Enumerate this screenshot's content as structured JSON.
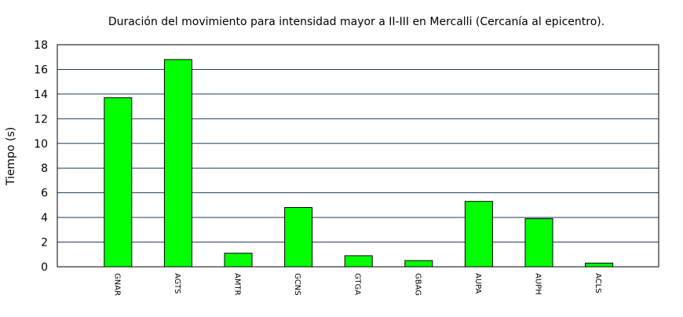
{
  "chart_data": {
    "type": "bar",
    "title": "Duración del movimiento para intensidad mayor a II-III en Mercalli (Cercanía al epicentro).",
    "xlabel": "",
    "ylabel": "Tiempo (s)",
    "categories": [
      "GNAR",
      "AGTS",
      "AMTR",
      "GCNS",
      "GTGA",
      "GBAG",
      "AUPA",
      "AUPH",
      "ACLS"
    ],
    "values": [
      13.7,
      16.8,
      1.1,
      4.8,
      0.9,
      0.5,
      5.3,
      3.9,
      0.3
    ],
    "ylim": [
      0,
      18
    ],
    "yticks": [
      0,
      2,
      4,
      6,
      8,
      10,
      12,
      14,
      16,
      18
    ],
    "grid": "horizontal",
    "bar_color": "#00ff00",
    "bar_edge_color": "#000000",
    "grid_color": "#1f3f5f"
  }
}
